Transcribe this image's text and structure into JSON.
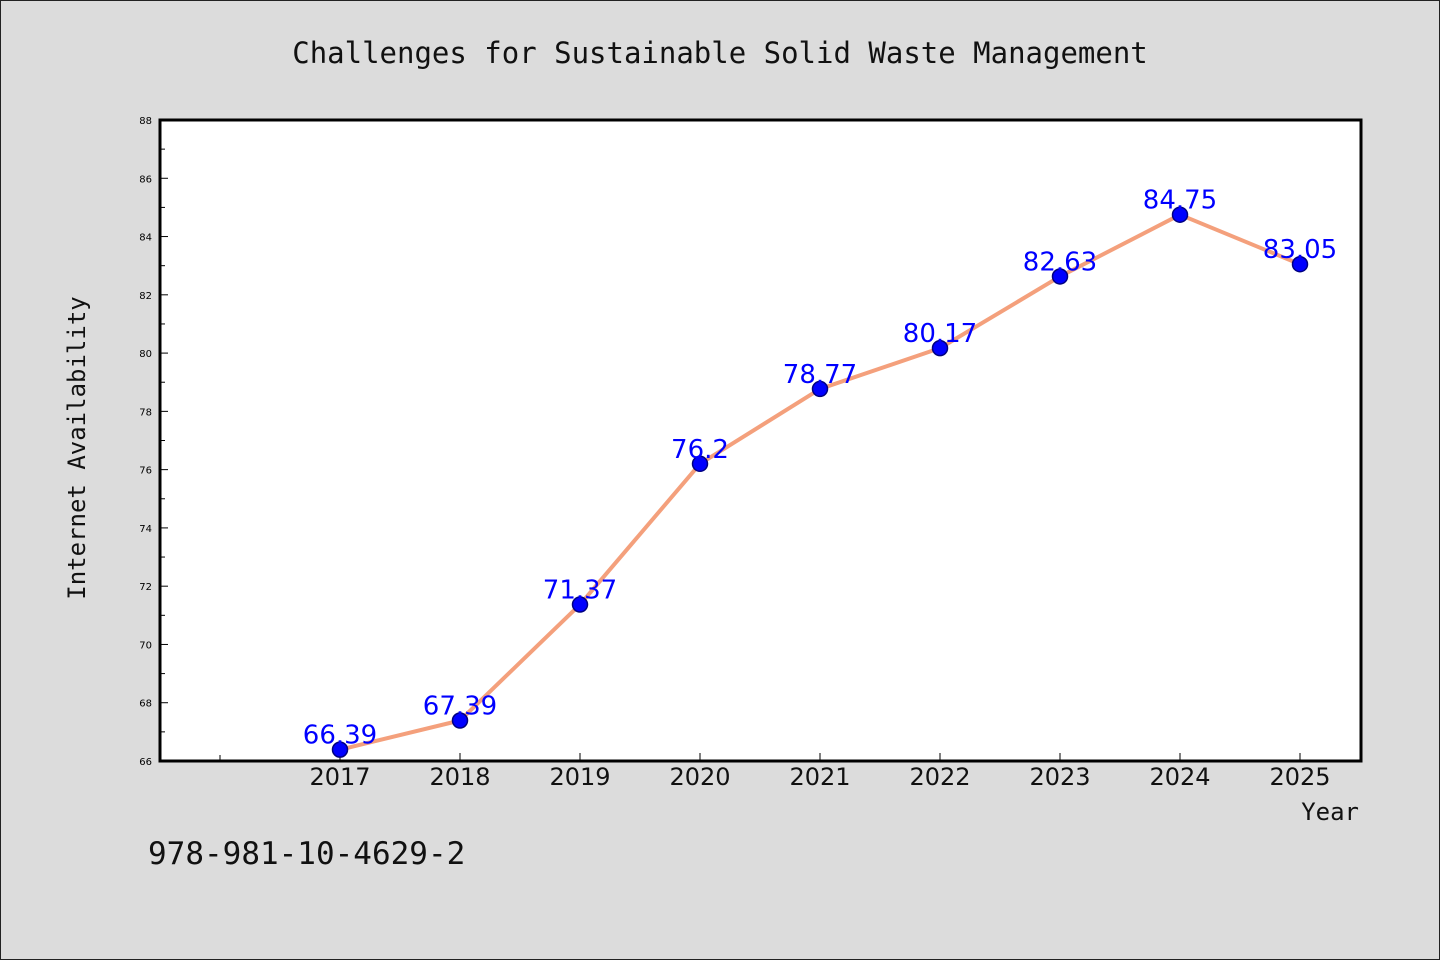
{
  "chart_data": {
    "type": "line",
    "title": "Challenges for Sustainable Solid Waste Management",
    "xlabel": "Year",
    "ylabel": "Internet Availability",
    "categories": [
      "2017",
      "2018",
      "2019",
      "2020",
      "2021",
      "2022",
      "2023",
      "2024",
      "2025"
    ],
    "series": [
      {
        "values": [
          66.39,
          67.39,
          71.37,
          76.2,
          78.77,
          80.17,
          82.63,
          84.75,
          83.05
        ],
        "labels": [
          "66.39",
          "67.39",
          "71.37",
          "76.2",
          "78.77",
          "80.17",
          "82.63",
          "84.75",
          "83.05"
        ]
      }
    ],
    "ylim": [
      66,
      88
    ],
    "yticks": [
      "66",
      "68",
      "70",
      "72",
      "74",
      "76",
      "78",
      "80",
      "82",
      "84",
      "86",
      "88"
    ],
    "grid": false,
    "legend": "none",
    "colors": {
      "line": "#f4a07c",
      "marker": "#0000ff",
      "marker_edge": "#000080",
      "data_label": "#0000ff",
      "axis": "#000000",
      "plot_bg": "#ffffff",
      "page_bg": "#dcdcdc"
    }
  },
  "footer_text": "978-981-10-4629-2"
}
